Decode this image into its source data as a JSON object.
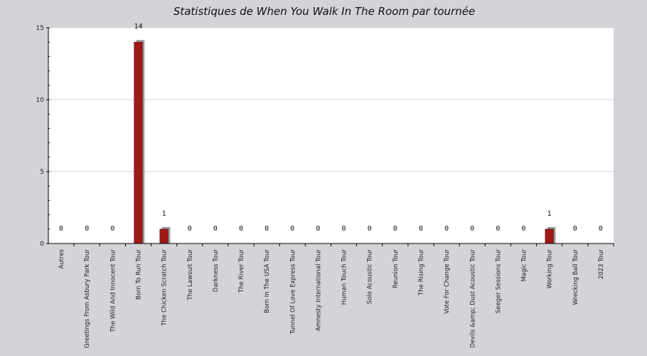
{
  "chart_data": {
    "type": "bar",
    "title": "Statistiques de When You Walk In The Room par tournée",
    "xlabel": "",
    "ylabel": "",
    "ylim": [
      0,
      15
    ],
    "yticks": [
      "0",
      "5",
      "10",
      "15"
    ],
    "grid": true,
    "legend": "none",
    "bar_color": "#a01818",
    "shadow_color": "#9a9a9a",
    "categories": [
      "Autres",
      "Greetings From Asbury Park Tour",
      "The Wild And Innocent Tour",
      "Born To Run Tour",
      "The Chicken Scratch Tour",
      "The Lawsuit Tour",
      "Darkness Tour",
      "The River Tour",
      "Born In The USA Tour",
      "Tunnel Of Love Express Tour",
      "Amnesty International Tour",
      "Human Touch Tour",
      "Solo Acoustic Tour",
      "Reunion Tour",
      "The Rising Tour",
      "Vote For Change Tour",
      "Devils &amp; Dust Acoustic Tour",
      "Seeger Sessions Tour",
      "Magic Tour",
      "Working Tour",
      "Wrecking Ball Tour",
      "2023 Tour"
    ],
    "values": [
      0,
      0,
      0,
      14,
      1,
      0,
      0,
      0,
      0,
      0,
      0,
      0,
      0,
      0,
      0,
      0,
      0,
      0,
      0,
      1,
      0,
      0
    ],
    "value_labels": [
      "0",
      "0",
      "0",
      "14",
      "1",
      "0",
      "0",
      "0",
      "0",
      "0",
      "0",
      "0",
      "0",
      "0",
      "0",
      "0",
      "0",
      "0",
      "0",
      "1",
      "0",
      "0"
    ]
  }
}
